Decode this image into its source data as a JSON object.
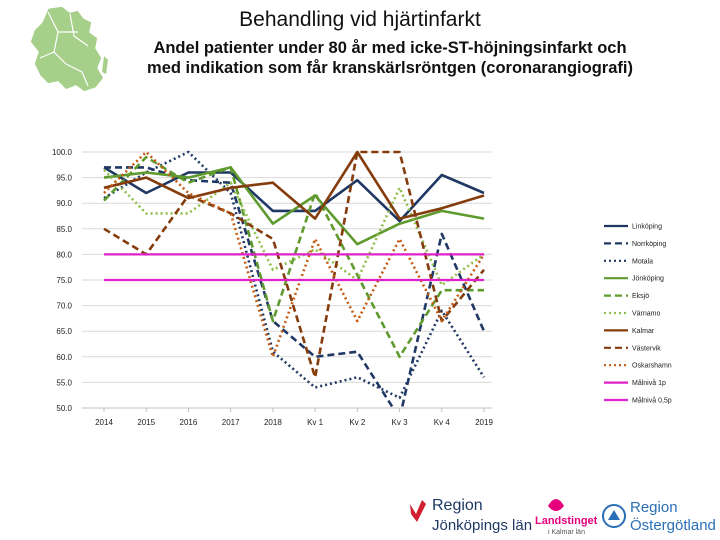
{
  "title": "Behandling vid hjärtinfarkt",
  "subtitle_line1": "Andel patienter under 80 år med icke-ST-höjningsinfarkt och",
  "subtitle_line2": "med indikation som får kranskärlsröntgen (coronarangiografi)",
  "logos": {
    "region_jkpg_line1": "Region",
    "region_jkpg_line2": "Jönköpings län",
    "landstinget_line1": "Landstinget",
    "landstinget_line2": "i Kalmar län",
    "region_og_line1": "Region",
    "region_og_line2": "Östergötland"
  },
  "chart_data": {
    "type": "line",
    "title": "",
    "xlabel": "",
    "ylabel": "",
    "categories": [
      "2014",
      "2015",
      "2016",
      "2017",
      "2018",
      "Kv 1",
      "Kv 2",
      "Kv 3",
      "Kv 4",
      "2019"
    ],
    "ylim": [
      50,
      100
    ],
    "yticks": [
      "100.0",
      "95.0",
      "90.0",
      "85.0",
      "80.0",
      "75.0",
      "70.0",
      "65.0",
      "60.0",
      "55.0",
      "50.0"
    ],
    "legend_position": "right",
    "series": [
      {
        "name": "Linköping",
        "color": "#1f3864",
        "dash": "solid",
        "values": [
          97,
          92,
          96,
          96,
          88.5,
          88.5,
          94.5,
          86.5,
          95.5,
          92
        ]
      },
      {
        "name": "Norrköping",
        "color": "#1f3864",
        "dash": "dash",
        "values": [
          97,
          97,
          94.5,
          94,
          67,
          60,
          61,
          48,
          84,
          65
        ]
      },
      {
        "name": "Motala",
        "color": "#1f3864",
        "dash": "dot",
        "values": [
          91,
          96,
          100,
          92,
          61,
          54,
          56,
          52,
          69,
          56
        ]
      },
      {
        "name": "Jönköping",
        "color": "#5e9a2e",
        "dash": "solid",
        "values": [
          95,
          96,
          95,
          97,
          86,
          91.5,
          82,
          86,
          88.5,
          87
        ]
      },
      {
        "name": "Eksjö",
        "color": "#5e9a2e",
        "dash": "dash",
        "values": [
          90.5,
          99,
          94,
          97,
          67,
          92,
          76,
          60,
          73,
          73
        ]
      },
      {
        "name": "Värnamo",
        "color": "#8fbf4a",
        "dash": "dot",
        "values": [
          96.5,
          88,
          88,
          94,
          77,
          81,
          75,
          93,
          74,
          80
        ]
      },
      {
        "name": "Kalmar",
        "color": "#843c0c",
        "dash": "solid",
        "values": [
          93,
          95,
          91,
          93,
          94,
          87,
          100,
          87,
          89,
          91.5
        ]
      },
      {
        "name": "Västervik",
        "color": "#843c0c",
        "dash": "dash",
        "values": [
          85,
          80,
          91.5,
          88,
          83,
          56,
          100,
          100,
          67,
          77
        ]
      },
      {
        "name": "Oskarshamn",
        "color": "#c55a11",
        "dash": "dot",
        "values": [
          92,
          100,
          92,
          88,
          60,
          83,
          67,
          83,
          67,
          80
        ]
      },
      {
        "name": "Målnivå 1p",
        "color": "#e020c8",
        "dash": "solid",
        "values": [
          80,
          80,
          80,
          80,
          80,
          80,
          80,
          80,
          80,
          80
        ]
      },
      {
        "name": "Målnivå 0,5p",
        "color": "#e020c8",
        "dash": "solid",
        "values": [
          75,
          75,
          75,
          75,
          75,
          75,
          75,
          75,
          75,
          75
        ]
      }
    ]
  }
}
